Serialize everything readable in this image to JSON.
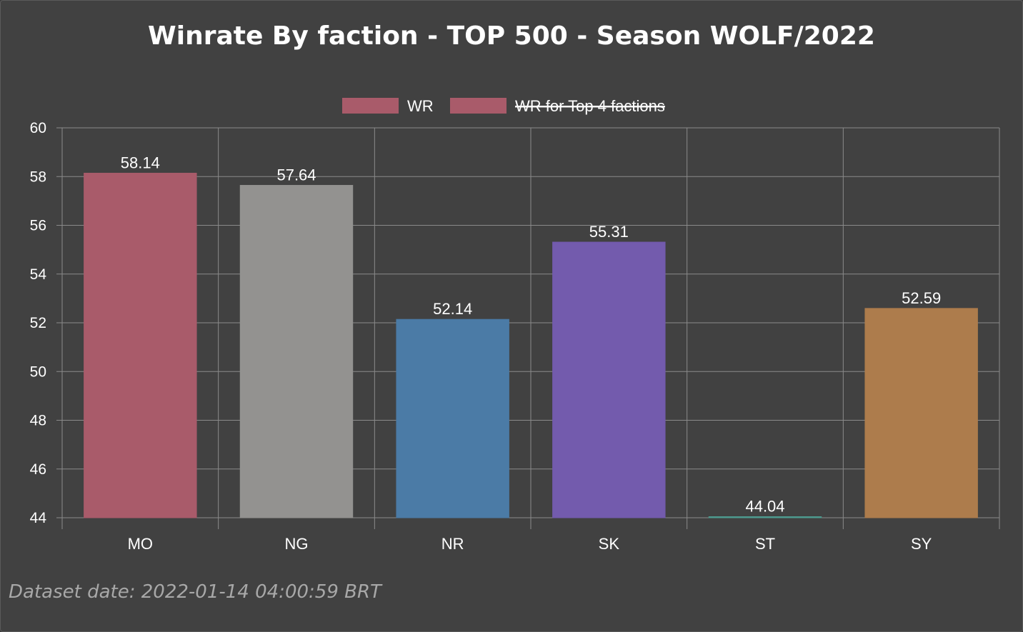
{
  "chart_data": {
    "type": "bar",
    "title": "Winrate By faction - TOP 500 - Season WOLF/2022",
    "categories": [
      "MO",
      "NG",
      "NR",
      "SK",
      "ST",
      "SY"
    ],
    "values": [
      58.14,
      57.64,
      52.14,
      55.31,
      44.04,
      52.59
    ],
    "value_labels": [
      "58.14",
      "57.64",
      "52.14",
      "55.31",
      "44.04",
      "52.59"
    ],
    "bar_colors": [
      "#a95b6a",
      "#939290",
      "#4b7ba6",
      "#735bad",
      "#4d9a8e",
      "#ad7c4c"
    ],
    "ylim": [
      44,
      60
    ],
    "yticks": [
      "60",
      "58",
      "56",
      "54",
      "52",
      "50",
      "48",
      "46",
      "44"
    ],
    "grid": true,
    "legend_position": "top-center",
    "legend": [
      {
        "name": "WR",
        "color": "#a95b6a",
        "hidden": false
      },
      {
        "name": "WR for Top 4 factions",
        "color": "#a95b6a",
        "hidden": true
      }
    ],
    "xlabel": "",
    "ylabel": ""
  },
  "footer": {
    "dataset_date": "Dataset date: 2022-01-14 04:00:59 BRT"
  },
  "colors": {
    "background": "#414141",
    "grid": "#8a8a8a"
  }
}
